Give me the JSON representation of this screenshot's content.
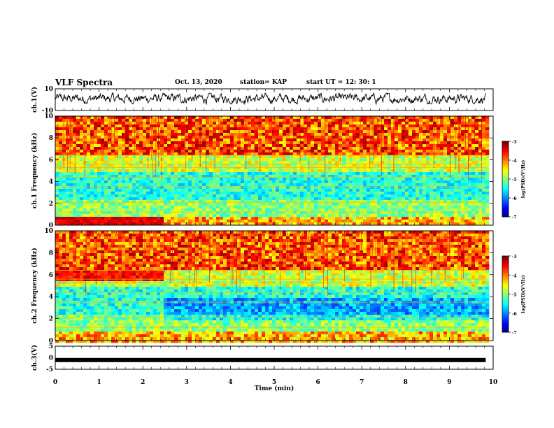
{
  "header": {
    "title": "VLF Spectra",
    "date": "Oct. 13, 2020",
    "station": "station= KAP",
    "start": "start  UT =   12: 30: 1"
  },
  "chart_data": [
    {
      "type": "line",
      "panel": "ch1-waveform",
      "ylabel": "ch.1(V)",
      "ylim": [
        -10,
        10
      ],
      "yticks": [
        10,
        -10
      ],
      "xlim": [
        0,
        10
      ],
      "description_values": {
        "x_end": 9.83,
        "typical_range": [
          -4,
          6
        ]
      }
    },
    {
      "type": "heatmap",
      "panel": "ch1-spectrogram",
      "ylabel": "ch.1  Frequency (kHz)",
      "ylim": [
        0,
        10
      ],
      "yticks": [
        0,
        2,
        4,
        6,
        8,
        10
      ],
      "xlim": [
        0,
        10
      ],
      "colorbar": {
        "label": "log(PSD)(V²/Hz)",
        "range": [
          -7,
          -3
        ],
        "ticks": [
          -3,
          -4,
          -5,
          -6,
          -7
        ],
        "colormap": "jet"
      },
      "transition_time_min": 2.4
    },
    {
      "type": "heatmap",
      "panel": "ch2-spectrogram",
      "ylabel": "ch.2  Frequency (kHz)",
      "ylim": [
        0,
        10
      ],
      "yticks": [
        0,
        2,
        4,
        6,
        8,
        10
      ],
      "xlim": [
        0,
        10
      ],
      "colorbar": {
        "label": "log(PSD)(V²/Hz)",
        "range": [
          -7,
          -3
        ],
        "ticks": [
          -3,
          -4,
          -5,
          -6,
          -7
        ],
        "colormap": "jet"
      },
      "transition_time_min": 2.4
    },
    {
      "type": "line",
      "panel": "ch3-waveform",
      "ylabel": "ch.3(V)",
      "ylim": [
        -5,
        5
      ],
      "yticks": [
        5,
        0,
        -5
      ],
      "xlim": [
        0,
        10
      ],
      "approx_value": -1
    }
  ],
  "xaxis": {
    "label": "Time (min)",
    "ticks": [
      "0",
      "1",
      "2",
      "3",
      "4",
      "5",
      "6",
      "7",
      "8",
      "9",
      "10"
    ]
  },
  "colors": {
    "axis": "#000000",
    "background": "#ffffff"
  }
}
